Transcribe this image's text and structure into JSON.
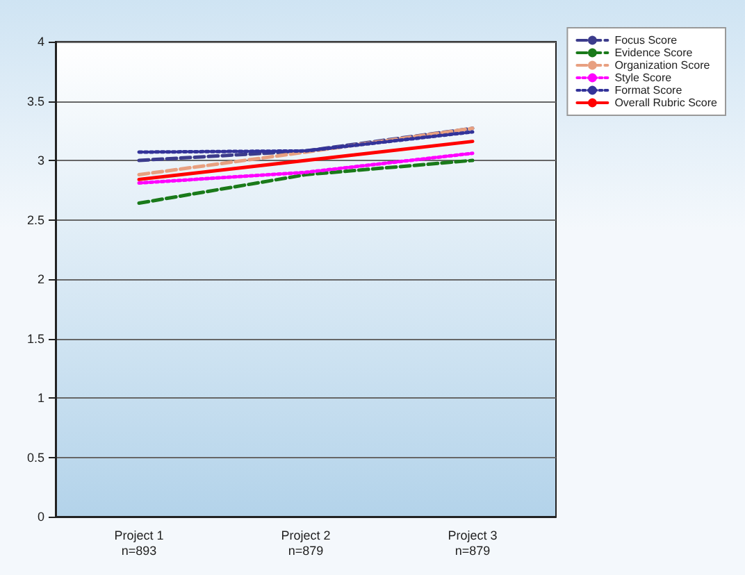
{
  "chart_data": {
    "type": "line",
    "categories": [
      "Project 1\nn=893",
      "Project 2\nn=879",
      "Project 3\nn=879"
    ],
    "series": [
      {
        "name": "Focus Score",
        "color": "#3c3c8c",
        "line_style": "dashed",
        "values": [
          3.0,
          3.08,
          3.27
        ]
      },
      {
        "name": "Evidence Score",
        "color": "#1a7a1a",
        "line_style": "dashed",
        "values": [
          2.64,
          2.88,
          3.0
        ]
      },
      {
        "name": "Organization Score",
        "color": "#e8a080",
        "line_style": "dashed",
        "values": [
          2.88,
          3.07,
          3.27
        ]
      },
      {
        "name": "Style Score",
        "color": "#ff00ff",
        "line_style": "dotted",
        "values": [
          2.81,
          2.9,
          3.06
        ]
      },
      {
        "name": "Format Score",
        "color": "#333399",
        "line_style": "dotted",
        "values": [
          3.07,
          3.08,
          3.24
        ]
      },
      {
        "name": "Overall Rubric Score",
        "color": "#ff0000",
        "line_style": "solid",
        "values": [
          2.84,
          3.0,
          3.16
        ]
      }
    ],
    "ylim": [
      0,
      4
    ],
    "yticks": [
      0,
      0.5,
      1,
      1.5,
      2,
      2.5,
      3,
      3.5,
      4
    ],
    "grid": "y",
    "legend": "top right",
    "marker": "none"
  }
}
